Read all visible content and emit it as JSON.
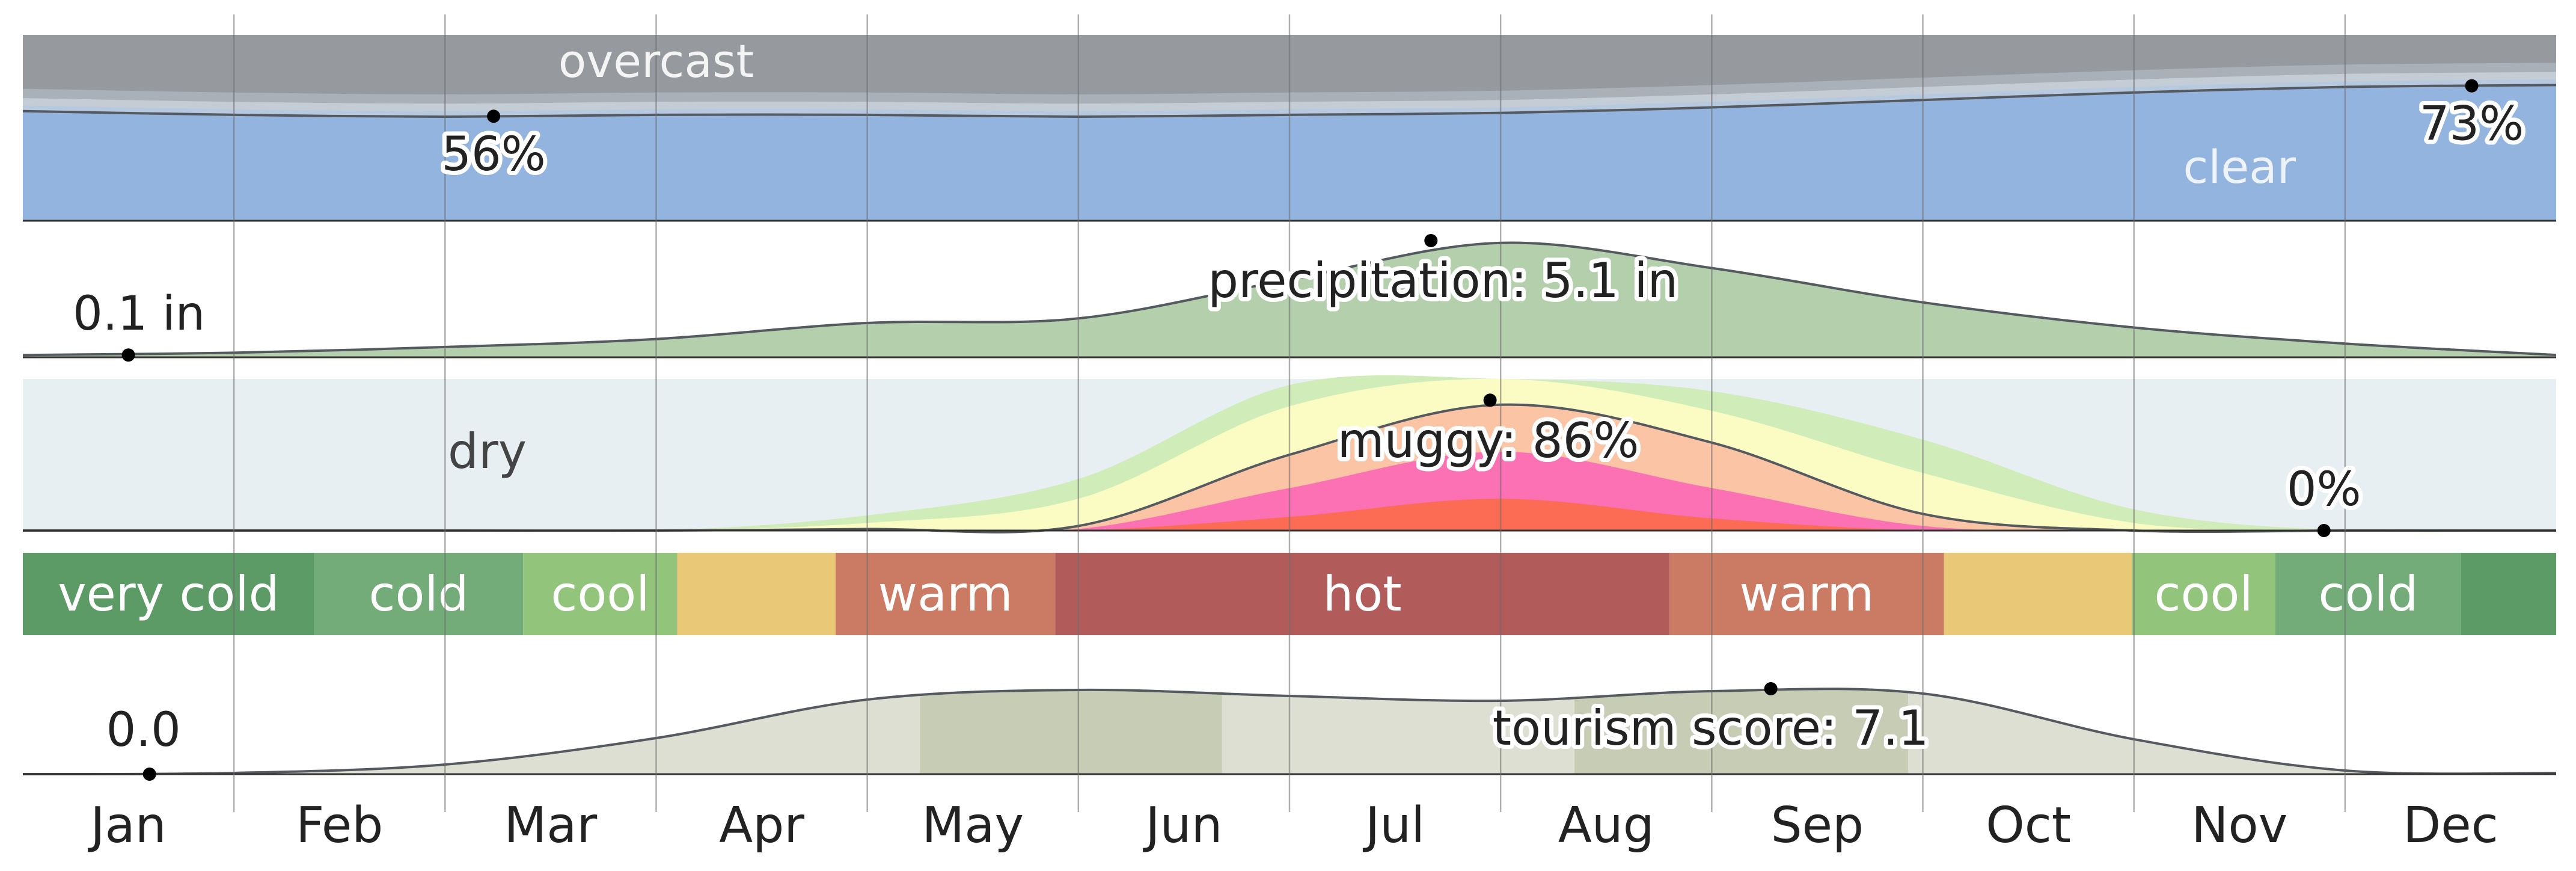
{
  "chart_data": {
    "type": "area",
    "months": [
      "Jan",
      "Feb",
      "Mar",
      "Apr",
      "May",
      "Jun",
      "Jul",
      "Aug",
      "Sep",
      "Oct",
      "Nov",
      "Dec"
    ],
    "cloud_cover": {
      "top_label": "overcast",
      "bottom_label": "clear",
      "clear_percent": [
        59,
        57,
        56,
        57,
        57,
        56,
        57,
        58,
        61,
        65,
        69,
        72,
        73
      ],
      "annotations": [
        {
          "month": 2.23,
          "value": 56,
          "label": "56%"
        },
        {
          "month": 11.6,
          "value": 73,
          "label": "73%"
        }
      ],
      "colors": {
        "clear": "#92b4df",
        "band1": "#b7c9de",
        "band2": "#c4ccd6",
        "band3": "#a9b0b8",
        "overcast": "#969a9f"
      }
    },
    "precipitation": {
      "unit": "in",
      "max": 5.1,
      "values": [
        0.1,
        0.2,
        0.45,
        0.8,
        1.5,
        1.7,
        3.4,
        5.0,
        3.9,
        2.4,
        1.3,
        0.6,
        0.1
      ],
      "annotations": [
        {
          "month": 0.5,
          "value": 0.1,
          "label": "0.1 in"
        },
        {
          "month": 6.67,
          "value": 5.1,
          "label": "precipitation: 5.1 in"
        }
      ],
      "color": "#b3cfab"
    },
    "humidity": {
      "dry_label": "dry",
      "muggy_percent": [
        0,
        0,
        0,
        0,
        1,
        3,
        50,
        83,
        58,
        11,
        0,
        0,
        0
      ],
      "annotations": [
        {
          "month": 6.95,
          "value": 86,
          "label": "muggy: 86%"
        },
        {
          "month": 10.9,
          "value": 0,
          "label": "0%"
        }
      ],
      "colors": {
        "dry": "#e8eff3",
        "comfortable": "#d0ecb8",
        "humid": "#fbfbc4",
        "muggy": "#fbc4a4",
        "oppressive": "#fc70b4",
        "miserable": "#fc6b54"
      }
    },
    "temperature": {
      "segments": [
        {
          "label": "very cold",
          "start": 0,
          "end": 1.38,
          "color": "#5d9b66"
        },
        {
          "label": "cold",
          "start": 1.38,
          "end": 2.37,
          "color": "#73ac78"
        },
        {
          "label": "cool",
          "start": 2.37,
          "end": 3.1,
          "color": "#93c47c"
        },
        {
          "label": "",
          "start": 3.1,
          "end": 3.85,
          "color": "#e9c977"
        },
        {
          "label": "warm",
          "start": 3.85,
          "end": 4.89,
          "color": "#cb7b64"
        },
        {
          "label": "hot",
          "start": 4.89,
          "end": 7.8,
          "color": "#b15b5b"
        },
        {
          "label": "warm",
          "start": 7.8,
          "end": 9.1,
          "color": "#cb7b64"
        },
        {
          "label": "",
          "start": 9.1,
          "end": 9.99,
          "color": "#e9c977"
        },
        {
          "label": "cool",
          "start": 9.99,
          "end": 10.67,
          "color": "#93c47c"
        },
        {
          "label": "cold",
          "start": 10.67,
          "end": 11.55,
          "color": "#73ac78"
        },
        {
          "label": "",
          "start": 11.55,
          "end": 12,
          "color": "#5d9b66"
        }
      ]
    },
    "tourism_score": {
      "max": 7.1,
      "values": [
        0.0,
        0.1,
        0.8,
        3.0,
        6.2,
        7.0,
        6.5,
        6.1,
        6.9,
        6.7,
        2.9,
        0.3,
        0.1
      ],
      "annotations": [
        {
          "month": 0.6,
          "value": 0.0,
          "label": "0.0"
        },
        {
          "month": 8.28,
          "value": 7.1,
          "label": "tourism score: 7.1"
        }
      ],
      "highlight_ranges": [
        [
          4.25,
          5.68
        ],
        [
          7.35,
          8.93
        ]
      ],
      "colors": {
        "area": "#dddfd3",
        "highlight": "#c7ccb5"
      }
    }
  }
}
